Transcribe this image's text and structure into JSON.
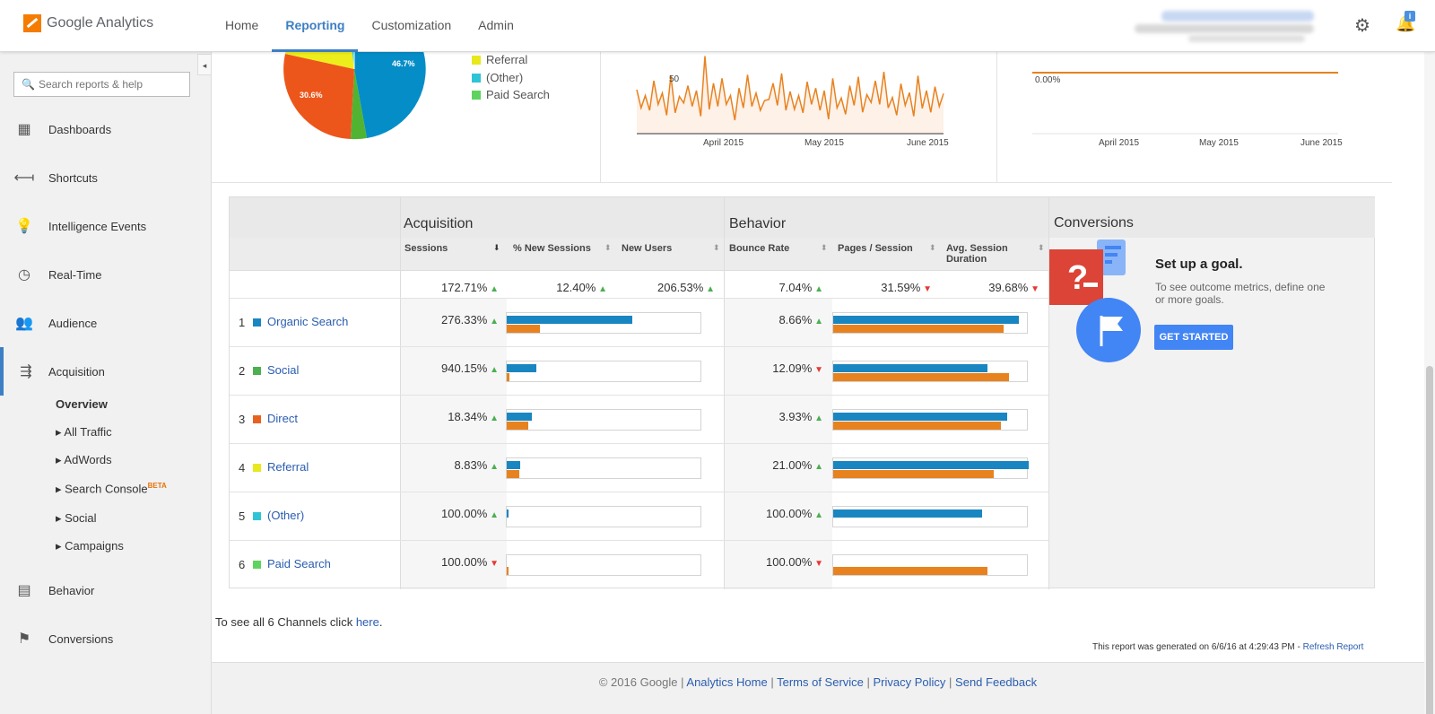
{
  "app": {
    "brand": "Google Analytics"
  },
  "nav": {
    "tabs": [
      "Home",
      "Reporting",
      "Customization",
      "Admin"
    ],
    "active": "Reporting"
  },
  "colors": {
    "accent": "#3d7fc4",
    "blue_bar": "#1a86c1",
    "orange_bar": "#e8821f",
    "green_arrow": "#4caf50",
    "red_arrow": "#e53935"
  },
  "sidebar": {
    "search_placeholder": "Search reports & help",
    "items": [
      {
        "label": "Dashboards",
        "icon": "grid-icon"
      },
      {
        "label": "Shortcuts",
        "icon": "shortcut-arrow-icon"
      },
      {
        "label": "Intelligence Events",
        "icon": "lightbulb-icon"
      },
      {
        "label": "Real-Time",
        "icon": "clock-icon"
      },
      {
        "label": "Audience",
        "icon": "people-icon"
      },
      {
        "label": "Acquisition",
        "icon": "acquisition-arrows-icon"
      },
      {
        "label": "Behavior",
        "icon": "layout-icon"
      },
      {
        "label": "Conversions",
        "icon": "flag-icon"
      }
    ],
    "sub_items": [
      "Overview",
      "All Traffic",
      "AdWords",
      "Search Console",
      "Social",
      "Campaigns"
    ],
    "beta_label": "BETA"
  },
  "pie": {
    "legend": [
      "Referral",
      "(Other)",
      "Paid Search"
    ],
    "slice_labels": [
      "46.7%",
      "30.6%"
    ],
    "legend_colors": [
      "#e8e81c",
      "#2ec4d6",
      "#5fd35f"
    ]
  },
  "line_chart": {
    "y_tick": "50",
    "x_ticks": [
      "April 2015",
      "May 2015",
      "June 2015"
    ]
  },
  "flat_chart": {
    "y_tick": "0.00%",
    "x_ticks": [
      "April 2015",
      "May 2015",
      "June 2015"
    ]
  },
  "table": {
    "groups": [
      "Acquisition",
      "Behavior",
      "Conversions"
    ],
    "columns": [
      "Sessions",
      "% New Sessions",
      "New Users",
      "Bounce Rate",
      "Pages / Session",
      "Avg. Session Duration"
    ],
    "totals": [
      "172.71%",
      "12.40%",
      "206.53%",
      "7.04%",
      "31.59%",
      "39.68%"
    ],
    "totals_dir": [
      "up",
      "up",
      "up",
      "up",
      "down",
      "down"
    ],
    "rows": [
      {
        "num": "1",
        "channel": "Organic Search",
        "color": "#1a86c1",
        "sessions": "276.33%",
        "sessions_dir": "up",
        "bounce": "8.66%",
        "bounce_dir": "up",
        "acq_blue": 0.64,
        "acq_orange": 0.17,
        "beh_blue": 0.95,
        "beh_orange": 0.87
      },
      {
        "num": "2",
        "channel": "Social",
        "color": "#4caf50",
        "sessions": "940.15%",
        "sessions_dir": "up",
        "bounce": "12.09%",
        "bounce_dir": "down",
        "acq_blue": 0.15,
        "acq_orange": 0.015,
        "beh_blue": 0.79,
        "beh_orange": 0.9
      },
      {
        "num": "3",
        "channel": "Direct",
        "color": "#e8621f",
        "sessions": "18.34%",
        "sessions_dir": "up",
        "bounce": "3.93%",
        "bounce_dir": "up",
        "acq_blue": 0.13,
        "acq_orange": 0.11,
        "beh_blue": 0.89,
        "beh_orange": 0.86
      },
      {
        "num": "4",
        "channel": "Referral",
        "color": "#e8e81c",
        "sessions": "8.83%",
        "sessions_dir": "up",
        "bounce": "21.00%",
        "bounce_dir": "up",
        "acq_blue": 0.07,
        "acq_orange": 0.065,
        "beh_blue": 1.0,
        "beh_orange": 0.82
      },
      {
        "num": "5",
        "channel": "(Other)",
        "color": "#2ec4d6",
        "sessions": "100.00%",
        "sessions_dir": "up",
        "bounce": "100.00%",
        "bounce_dir": "up",
        "acq_blue": 0.008,
        "acq_orange": 0,
        "beh_blue": 0.76,
        "beh_orange": 0
      },
      {
        "num": "6",
        "channel": "Paid Search",
        "color": "#5fd35f",
        "sessions": "100.00%",
        "sessions_dir": "down",
        "bounce": "100.00%",
        "bounce_dir": "down",
        "acq_blue": 0,
        "acq_orange": 0.008,
        "beh_blue": 0,
        "beh_orange": 0.79
      }
    ]
  },
  "goal": {
    "title": "Set up a goal.",
    "desc": "To see outcome metrics, define one or more goals.",
    "button": "GET STARTED"
  },
  "see_all": {
    "text": "To see all 6 Channels click ",
    "link": "here",
    "end": "."
  },
  "generated": {
    "text": "This report was generated on 6/6/16 at 4:29:43 PM - ",
    "link": "Refresh Report"
  },
  "footer": {
    "copyright": "© 2016 Google",
    "links": [
      "Analytics Home",
      "Terms of Service",
      "Privacy Policy",
      "Send Feedback"
    ],
    "separator": " | "
  }
}
